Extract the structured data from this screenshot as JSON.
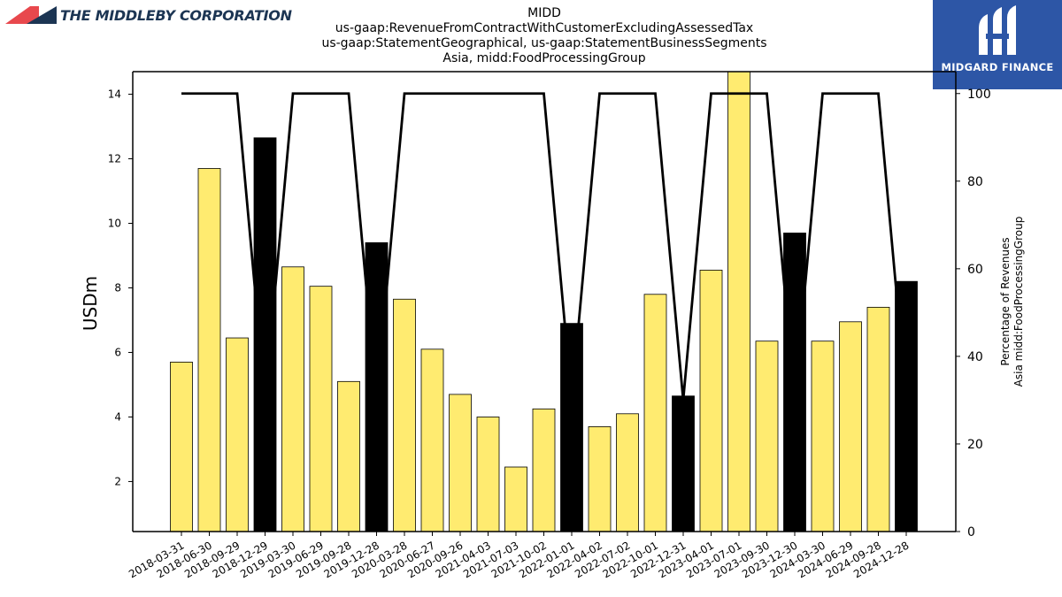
{
  "header": {
    "left_logo_text": "THE MIDDLEBY CORPORATION",
    "right_logo_text": "MIDGARD FINANCE"
  },
  "chart_data": {
    "type": "bar",
    "title_lines": [
      "MIDD",
      "us-gaap:RevenueFromContractWithCustomerExcludingAssessedTax",
      "us-gaap:StatementGeographical, us-gaap:StatementBusinessSegments",
      "Asia, midd:FoodProcessingGroup"
    ],
    "ylabel": "USDm",
    "y2label_lines": [
      "Percentage of Revenues",
      "Asia midd:FoodProcessingGroup"
    ],
    "ylim": [
      0.45,
      14.7
    ],
    "y2lim": [
      0,
      105
    ],
    "yticks": [
      2,
      4,
      6,
      8,
      10,
      12,
      14
    ],
    "y2ticks": [
      0,
      20,
      40,
      60,
      80,
      100
    ],
    "categories": [
      "2018-03-31",
      "2018-06-30",
      "2018-09-29",
      "2018-12-29",
      "2019-03-30",
      "2019-06-29",
      "2019-09-28",
      "2019-12-28",
      "2020-03-28",
      "2020-06-27",
      "2020-09-26",
      "2021-04-03",
      "2021-07-03",
      "2021-10-02",
      "2022-01-01",
      "2022-04-02",
      "2022-07-02",
      "2022-10-01",
      "2022-12-31",
      "2023-04-01",
      "2023-07-01",
      "2023-09-30",
      "2023-12-30",
      "2024-03-30",
      "2024-06-29",
      "2024-09-28",
      "2024-12-28"
    ],
    "series": [
      {
        "type": "bar",
        "values": [
          5.7,
          11.7,
          6.45,
          12.65,
          8.65,
          8.05,
          5.1,
          9.4,
          7.65,
          6.1,
          4.7,
          4.0,
          2.45,
          4.25,
          6.9,
          3.7,
          4.1,
          7.8,
          4.65,
          8.55,
          14.9,
          6.35,
          9.7,
          6.35,
          6.95,
          7.4,
          8.2
        ],
        "annual": [
          false,
          false,
          false,
          true,
          false,
          false,
          false,
          true,
          false,
          false,
          false,
          false,
          false,
          false,
          true,
          false,
          false,
          false,
          true,
          false,
          false,
          false,
          true,
          false,
          false,
          false,
          true
        ],
        "color_quarter": "#ffeb70",
        "color_annual": "#000000"
      },
      {
        "type": "line",
        "axis": "right",
        "values": [
          100,
          100,
          100,
          30,
          100,
          100,
          100,
          30,
          100,
          100,
          100,
          100,
          100,
          100,
          30,
          100,
          100,
          100,
          30,
          100,
          100,
          100,
          30,
          100,
          100,
          100,
          30
        ],
        "color": "#000000"
      }
    ]
  }
}
